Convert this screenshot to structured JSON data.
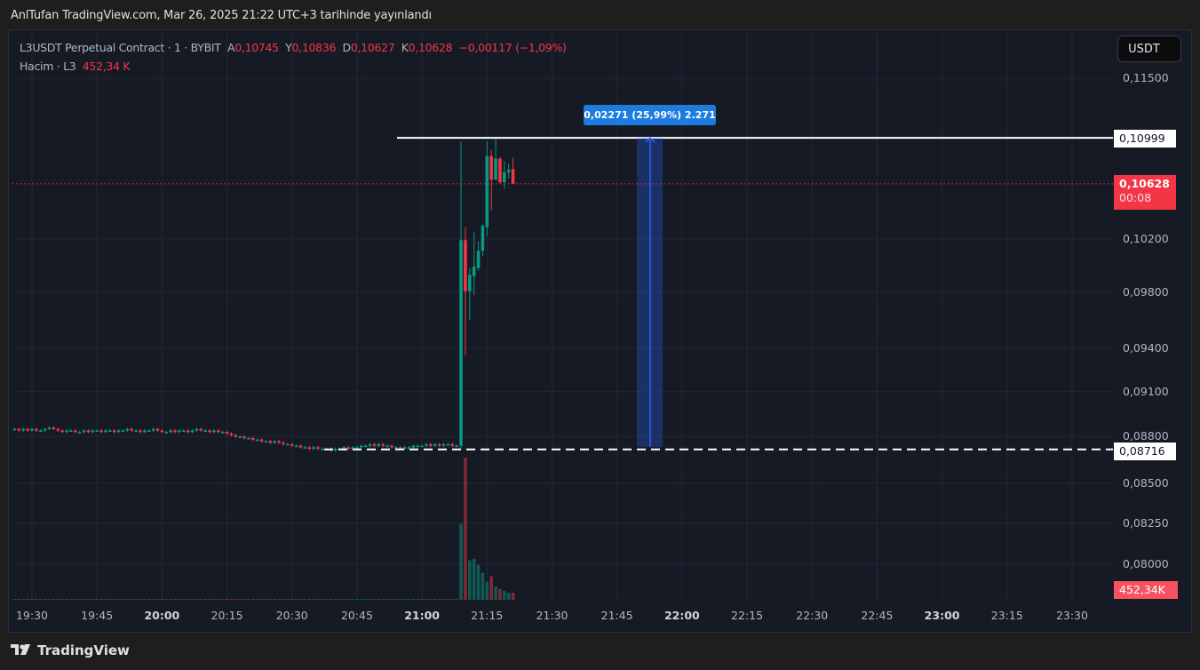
{
  "published": "AnlTufan TradingView.com, Mar 26, 2025 21:22 UTC+3 tarihinde yayınlandı",
  "legend": {
    "symbol": "L3USDT Perpetual Contract · 1 · BYBIT",
    "open_label": "A",
    "open": "0,10745",
    "high_label": "Y",
    "high": "0,10836",
    "low_label": "D",
    "low": "0,10627",
    "close_label": "K",
    "close": "0,10628",
    "change": "−0,00117 (−1,09%)",
    "volume_label": "Hacim · L3",
    "volume": "452,34 K"
  },
  "currency_button": "USDT",
  "price_axis": {
    "scale": "log",
    "ticks": [
      "0,11500",
      "0,10200",
      "0,09800",
      "0,09400",
      "0,09100",
      "0,08800",
      "0,08500",
      "0,08250",
      "0,08000"
    ],
    "tick_values": [
      0.115,
      0.102,
      0.098,
      0.094,
      0.091,
      0.088,
      0.085,
      0.0825,
      0.08
    ]
  },
  "time_axis": {
    "ticks": [
      {
        "label": "19:30",
        "bold": false
      },
      {
        "label": "19:45",
        "bold": false
      },
      {
        "label": "20:00",
        "bold": true
      },
      {
        "label": "20:15",
        "bold": false
      },
      {
        "label": "20:30",
        "bold": false
      },
      {
        "label": "20:45",
        "bold": false
      },
      {
        "label": "21:00",
        "bold": true
      },
      {
        "label": "21:15",
        "bold": false
      },
      {
        "label": "21:30",
        "bold": false
      },
      {
        "label": "21:45",
        "bold": false
      },
      {
        "label": "22:00",
        "bold": true
      },
      {
        "label": "22:15",
        "bold": false
      },
      {
        "label": "22:30",
        "bold": false
      },
      {
        "label": "22:45",
        "bold": false
      },
      {
        "label": "23:00",
        "bold": true
      },
      {
        "label": "23:15",
        "bold": false
      },
      {
        "label": "23:30",
        "bold": false
      }
    ]
  },
  "tags": {
    "high_line": "0,10999",
    "last_price": "0,10628",
    "countdown": "00:08",
    "low_line": "0,08716",
    "volume": "452,34K"
  },
  "measure_label": "0,02271 (25,99%) 2.271",
  "lines": {
    "high_price": 0.10999,
    "low_price": 0.08716,
    "last_price": 0.10628
  },
  "colors": {
    "up": "#089981",
    "down": "#f23645",
    "background": "#161a25",
    "grid": "#232733",
    "measure": "#2962ff"
  },
  "chart_data": {
    "type": "candlestick",
    "interval": "1m",
    "start_time": "19:26",
    "flat_closes": [
      0.0885,
      0.0884,
      0.0885,
      0.0884,
      0.0885,
      0.0884,
      0.0884,
      0.0885,
      0.0886,
      0.0885,
      0.0884,
      0.0883,
      0.0884,
      0.0884,
      0.0883,
      0.0883,
      0.0884,
      0.0883,
      0.0884,
      0.0884,
      0.0883,
      0.0884,
      0.0884,
      0.0883,
      0.0884,
      0.0884,
      0.0885,
      0.0884,
      0.0884,
      0.0883,
      0.0884,
      0.0884,
      0.0885,
      0.0884,
      0.0883,
      0.0883,
      0.0884,
      0.0883,
      0.0884,
      0.0884,
      0.0883,
      0.0884,
      0.0885,
      0.0884,
      0.0884,
      0.0883,
      0.0884,
      0.0883,
      0.0883,
      0.0882,
      0.0881,
      0.088,
      0.088,
      0.0879,
      0.0879,
      0.0878,
      0.0878,
      0.0877,
      0.0877,
      0.0876,
      0.0877,
      0.0876,
      0.0875,
      0.0875,
      0.0874,
      0.0874,
      0.0873,
      0.0873,
      0.0872,
      0.0873,
      0.0872,
      0.0872,
      0.0872,
      0.0871,
      0.0872,
      0.0872,
      0.0873,
      0.0872,
      0.0873,
      0.0873,
      0.0874,
      0.0874,
      0.0875,
      0.0874,
      0.0875,
      0.0874,
      0.0874,
      0.0873,
      0.0873,
      0.0872,
      0.0873,
      0.0873,
      0.0874,
      0.0874,
      0.0874,
      0.0875,
      0.0874,
      0.0875,
      0.0874,
      0.0875,
      0.0875,
      0.0874,
      0.0874
    ],
    "flat_volume_k": 30,
    "candles": [
      {
        "t": "21:09",
        "o": 0.0874,
        "h": 0.1097,
        "l": 0.0872,
        "c": 0.1019,
        "v": 4800
      },
      {
        "t": "21:10",
        "o": 0.1019,
        "h": 0.1029,
        "l": 0.0935,
        "c": 0.0981,
        "v": 9000
      },
      {
        "t": "21:11",
        "o": 0.0981,
        "h": 0.0998,
        "l": 0.096,
        "c": 0.0993,
        "v": 2500
      },
      {
        "t": "21:12",
        "o": 0.0992,
        "h": 0.1025,
        "l": 0.0978,
        "c": 0.0999,
        "v": 2600
      },
      {
        "t": "21:13",
        "o": 0.0998,
        "h": 0.1018,
        "l": 0.0996,
        "c": 0.1011,
        "v": 2200
      },
      {
        "t": "21:14",
        "o": 0.1011,
        "h": 0.1031,
        "l": 0.1007,
        "c": 0.103,
        "v": 1700
      },
      {
        "t": "21:15",
        "o": 0.1029,
        "h": 0.1097,
        "l": 0.1022,
        "c": 0.1085,
        "v": 1150
      },
      {
        "t": "21:16",
        "o": 0.1085,
        "h": 0.109,
        "l": 0.1042,
        "c": 0.1066,
        "v": 1500
      },
      {
        "t": "21:17",
        "o": 0.1066,
        "h": 0.1099,
        "l": 0.1066,
        "c": 0.1083,
        "v": 850
      },
      {
        "t": "21:18",
        "o": 0.1083,
        "h": 0.1084,
        "l": 0.1063,
        "c": 0.1064,
        "v": 680
      },
      {
        "t": "21:19",
        "o": 0.1064,
        "h": 0.1081,
        "l": 0.1059,
        "c": 0.1072,
        "v": 560
      },
      {
        "t": "21:20",
        "o": 0.1072,
        "h": 0.1079,
        "l": 0.1067,
        "c": 0.1074,
        "v": 450
      },
      {
        "t": "21:21",
        "o": 0.10745,
        "h": 0.10836,
        "l": 0.10627,
        "c": 0.10628,
        "v": 452.34
      }
    ]
  }
}
